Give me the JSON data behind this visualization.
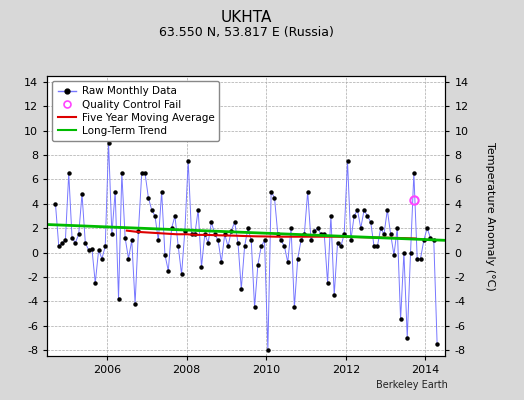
{
  "title": "UKHTA",
  "subtitle": "63.550 N, 53.817 E (Russia)",
  "ylabel": "Temperature Anomaly (°C)",
  "credit": "Berkeley Earth",
  "ylim": [
    -8.5,
    14.5
  ],
  "xlim": [
    2004.5,
    2014.5
  ],
  "xticks": [
    2006,
    2008,
    2010,
    2012,
    2014
  ],
  "yticks": [
    -8,
    -6,
    -4,
    -2,
    0,
    2,
    4,
    6,
    8,
    10,
    12,
    14
  ],
  "raw_x": [
    2004.708,
    2004.792,
    2004.875,
    2004.958,
    2005.042,
    2005.125,
    2005.208,
    2005.292,
    2005.375,
    2005.458,
    2005.542,
    2005.625,
    2005.708,
    2005.792,
    2005.875,
    2005.958,
    2006.042,
    2006.125,
    2006.208,
    2006.292,
    2006.375,
    2006.458,
    2006.542,
    2006.625,
    2006.708,
    2006.792,
    2006.875,
    2006.958,
    2007.042,
    2007.125,
    2007.208,
    2007.292,
    2007.375,
    2007.458,
    2007.542,
    2007.625,
    2007.708,
    2007.792,
    2007.875,
    2007.958,
    2008.042,
    2008.125,
    2008.208,
    2008.292,
    2008.375,
    2008.458,
    2008.542,
    2008.625,
    2008.708,
    2008.792,
    2008.875,
    2008.958,
    2009.042,
    2009.125,
    2009.208,
    2009.292,
    2009.375,
    2009.458,
    2009.542,
    2009.625,
    2009.708,
    2009.792,
    2009.875,
    2009.958,
    2010.042,
    2010.125,
    2010.208,
    2010.292,
    2010.375,
    2010.458,
    2010.542,
    2010.625,
    2010.708,
    2010.792,
    2010.875,
    2010.958,
    2011.042,
    2011.125,
    2011.208,
    2011.292,
    2011.375,
    2011.458,
    2011.542,
    2011.625,
    2011.708,
    2011.792,
    2011.875,
    2011.958,
    2012.042,
    2012.125,
    2012.208,
    2012.292,
    2012.375,
    2012.458,
    2012.542,
    2012.625,
    2012.708,
    2012.792,
    2012.875,
    2012.958,
    2013.042,
    2013.125,
    2013.208,
    2013.292,
    2013.375,
    2013.458,
    2013.542,
    2013.625,
    2013.708,
    2013.792,
    2013.875,
    2013.958,
    2014.042,
    2014.125,
    2014.208,
    2014.292
  ],
  "raw_y": [
    4.0,
    0.5,
    0.8,
    1.0,
    6.5,
    1.2,
    0.8,
    1.5,
    4.8,
    0.8,
    0.2,
    0.3,
    -2.5,
    0.2,
    -0.5,
    0.5,
    9.0,
    1.5,
    5.0,
    -3.8,
    6.5,
    1.2,
    -0.5,
    1.0,
    -4.2,
    1.8,
    6.5,
    6.5,
    4.5,
    3.5,
    3.0,
    1.0,
    5.0,
    -0.2,
    -1.5,
    2.0,
    3.0,
    0.5,
    -1.8,
    1.8,
    7.5,
    1.5,
    1.5,
    3.5,
    -1.2,
    1.5,
    0.8,
    2.5,
    1.5,
    1.0,
    -0.8,
    1.5,
    0.5,
    1.8,
    2.5,
    0.8,
    -3.0,
    0.5,
    2.0,
    1.0,
    -4.5,
    -1.0,
    0.5,
    1.0,
    -8.0,
    5.0,
    4.5,
    1.5,
    1.0,
    0.5,
    -0.8,
    2.0,
    -4.5,
    -0.5,
    1.0,
    1.5,
    5.0,
    1.0,
    1.8,
    2.0,
    1.5,
    1.5,
    -2.5,
    3.0,
    -3.5,
    0.8,
    0.5,
    1.5,
    7.5,
    1.0,
    3.0,
    3.5,
    2.0,
    3.5,
    3.0,
    2.5,
    0.5,
    0.5,
    2.0,
    1.5,
    3.5,
    1.5,
    -0.2,
    2.0,
    -5.5,
    0.0,
    -7.0,
    0.0,
    6.5,
    -0.5,
    -0.5,
    1.0,
    2.0,
    1.2,
    1.0,
    -7.5
  ],
  "qc_fail_x": [
    2013.708
  ],
  "qc_fail_y": [
    4.3
  ],
  "moving_avg_x": [
    2006.5,
    2006.75,
    2007.0,
    2007.25,
    2007.5,
    2007.75,
    2008.0,
    2008.25,
    2008.5,
    2008.75,
    2009.0,
    2009.25,
    2009.5,
    2009.75,
    2010.0,
    2010.25,
    2010.5,
    2010.75,
    2011.0,
    2011.25,
    2011.5,
    2011.75,
    2012.0,
    2012.25,
    2012.5,
    2012.75,
    2013.0,
    2013.25,
    2013.5,
    2013.75
  ],
  "moving_avg_y": [
    1.8,
    1.7,
    1.65,
    1.6,
    1.55,
    1.5,
    1.5,
    1.45,
    1.45,
    1.42,
    1.4,
    1.38,
    1.35,
    1.33,
    1.32,
    1.3,
    1.3,
    1.3,
    1.3,
    1.3,
    1.3,
    1.3,
    1.28,
    1.27,
    1.25,
    1.23,
    1.22,
    1.2,
    1.18,
    1.15
  ],
  "trend_x": [
    2004.5,
    2014.5
  ],
  "trend_y": [
    2.3,
    1.0
  ],
  "raw_line_color": "#7777ff",
  "dot_color": "#000000",
  "qc_color": "#ff44ff",
  "moving_avg_color": "#dd0000",
  "trend_color": "#00bb00",
  "bg_color": "#d8d8d8",
  "plot_bg_color": "#ffffff",
  "grid_color": "#aaaaaa",
  "title_fontsize": 11,
  "subtitle_fontsize": 9,
  "label_fontsize": 8,
  "tick_fontsize": 8,
  "legend_fontsize": 7.5,
  "credit_fontsize": 7
}
